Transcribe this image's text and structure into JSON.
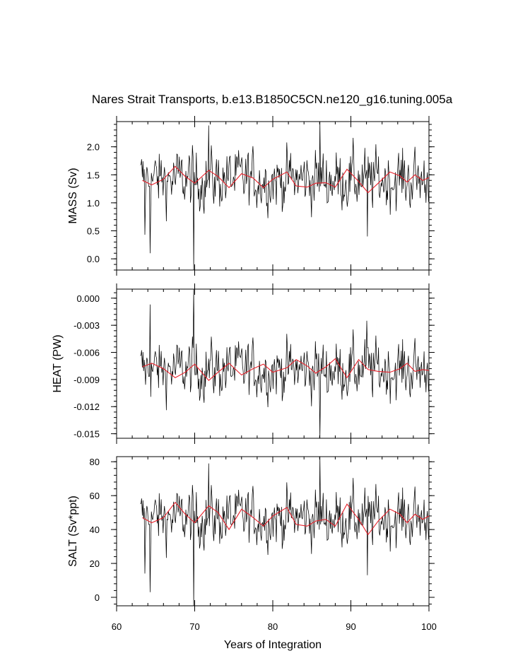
{
  "title": "Nares Strait Transports, b.e13.B1850C5CN.ne120_g16.tuning.005a",
  "xlabel": "Years of Integration",
  "chart_data": {
    "type": "line",
    "title": "Nares Strait Transports, b.e13.B1850C5CN.ne120_g16.tuning.005a",
    "xlabel": "Years of Integration",
    "xlim": [
      60,
      100
    ],
    "xticks": [
      "60",
      "70",
      "80",
      "90",
      "100"
    ],
    "grid": false,
    "colors": {
      "raw": "#000000",
      "smooth": "#e8202a"
    },
    "x_start": 63.04,
    "x_step": 0.08333,
    "panels": [
      {
        "ylabel": "MASS (Sv)",
        "ylim": [
          -0.2,
          2.45
        ],
        "yticks": [
          "0.0",
          "0.5",
          "1.0",
          "1.5",
          "2.0"
        ],
        "ytick_values": [
          0.0,
          0.5,
          1.0,
          1.5,
          2.0
        ],
        "raw_mean": 1.42,
        "raw_sd": 0.3,
        "raw_range": [
          -0.2,
          2.45
        ],
        "spikes": [
          [
            63.6,
            0.43
          ],
          [
            64.3,
            0.1
          ],
          [
            69.9,
            -0.2
          ],
          [
            71.8,
            2.38
          ],
          [
            86.0,
            2.45
          ],
          [
            92.1,
            0.4
          ]
        ],
        "smooth_x": [
          63.3,
          64.5,
          66.0,
          67.5,
          68.8,
          70.0,
          71.8,
          73.0,
          74.4,
          76.0,
          77.5,
          78.8,
          80.0,
          81.8,
          83.0,
          84.4,
          85.5,
          86.8,
          88.0,
          89.5,
          91.0,
          92.2,
          93.5,
          95.0,
          96.3,
          97.2,
          98.2,
          99.2,
          100.0
        ],
        "smooth_y": [
          1.4,
          1.32,
          1.42,
          1.65,
          1.47,
          1.35,
          1.58,
          1.47,
          1.27,
          1.52,
          1.44,
          1.27,
          1.42,
          1.55,
          1.3,
          1.28,
          1.35,
          1.36,
          1.28,
          1.6,
          1.38,
          1.18,
          1.35,
          1.55,
          1.48,
          1.37,
          1.5,
          1.4,
          1.45
        ]
      },
      {
        "ylabel": "HEAT (PW)",
        "ylim": [
          -0.0155,
          0.001
        ],
        "yticks": [
          "-0.015",
          "-0.012",
          "-0.009",
          "-0.006",
          "-0.003",
          "0.000"
        ],
        "ytick_values": [
          -0.015,
          -0.012,
          -0.009,
          -0.006,
          -0.003,
          0.0
        ],
        "raw_mean": -0.0079,
        "raw_sd": 0.0018,
        "raw_range": [
          -0.0155,
          0.001
        ],
        "spikes": [
          [
            64.3,
            -0.0007
          ],
          [
            69.9,
            0.001
          ],
          [
            86.0,
            -0.0155
          ],
          [
            92.0,
            -0.0025
          ]
        ],
        "smooth_x": [
          63.3,
          64.5,
          66.0,
          67.5,
          68.8,
          70.0,
          71.8,
          73.0,
          74.4,
          76.0,
          77.5,
          78.8,
          80.0,
          81.8,
          83.0,
          84.4,
          85.5,
          86.8,
          88.0,
          89.5,
          91.0,
          92.2,
          93.5,
          95.0,
          96.3,
          97.2,
          98.2,
          99.2,
          100.0
        ],
        "smooth_y": [
          -0.0076,
          -0.0072,
          -0.0078,
          -0.0088,
          -0.0082,
          -0.0073,
          -0.0091,
          -0.0082,
          -0.0072,
          -0.0085,
          -0.0078,
          -0.0073,
          -0.0082,
          -0.0077,
          -0.0068,
          -0.0075,
          -0.0083,
          -0.0076,
          -0.0067,
          -0.0088,
          -0.0068,
          -0.0079,
          -0.0081,
          -0.0082,
          -0.0078,
          -0.0072,
          -0.0081,
          -0.0079,
          -0.008
        ]
      },
      {
        "ylabel": "SALT (Sv*ppt)",
        "ylim": [
          -5,
          83
        ],
        "yticks": [
          "0",
          "20",
          "40",
          "60",
          "80"
        ],
        "ytick_values": [
          0,
          20,
          40,
          60,
          80
        ],
        "raw_mean": 47,
        "raw_sd": 9.5,
        "raw_range": [
          -5,
          83
        ],
        "spikes": [
          [
            63.6,
            14
          ],
          [
            64.3,
            3
          ],
          [
            69.9,
            -5
          ],
          [
            71.8,
            79
          ],
          [
            86.0,
            83
          ],
          [
            92.1,
            13
          ]
        ],
        "smooth_x": [
          63.3,
          64.5,
          66.0,
          67.5,
          68.8,
          70.0,
          71.8,
          73.0,
          74.4,
          76.0,
          77.5,
          78.8,
          80.0,
          81.8,
          83.0,
          84.4,
          85.5,
          86.8,
          88.0,
          89.5,
          91.0,
          92.2,
          93.5,
          95.0,
          96.3,
          97.2,
          98.2,
          99.2,
          100.0
        ],
        "smooth_y": [
          47,
          44,
          47,
          56,
          49,
          44,
          54,
          50,
          40,
          52,
          47,
          42,
          48,
          53,
          43,
          42,
          45,
          46,
          42,
          55,
          46,
          37,
          45,
          52,
          49,
          44,
          49,
          46,
          48
        ]
      }
    ]
  }
}
